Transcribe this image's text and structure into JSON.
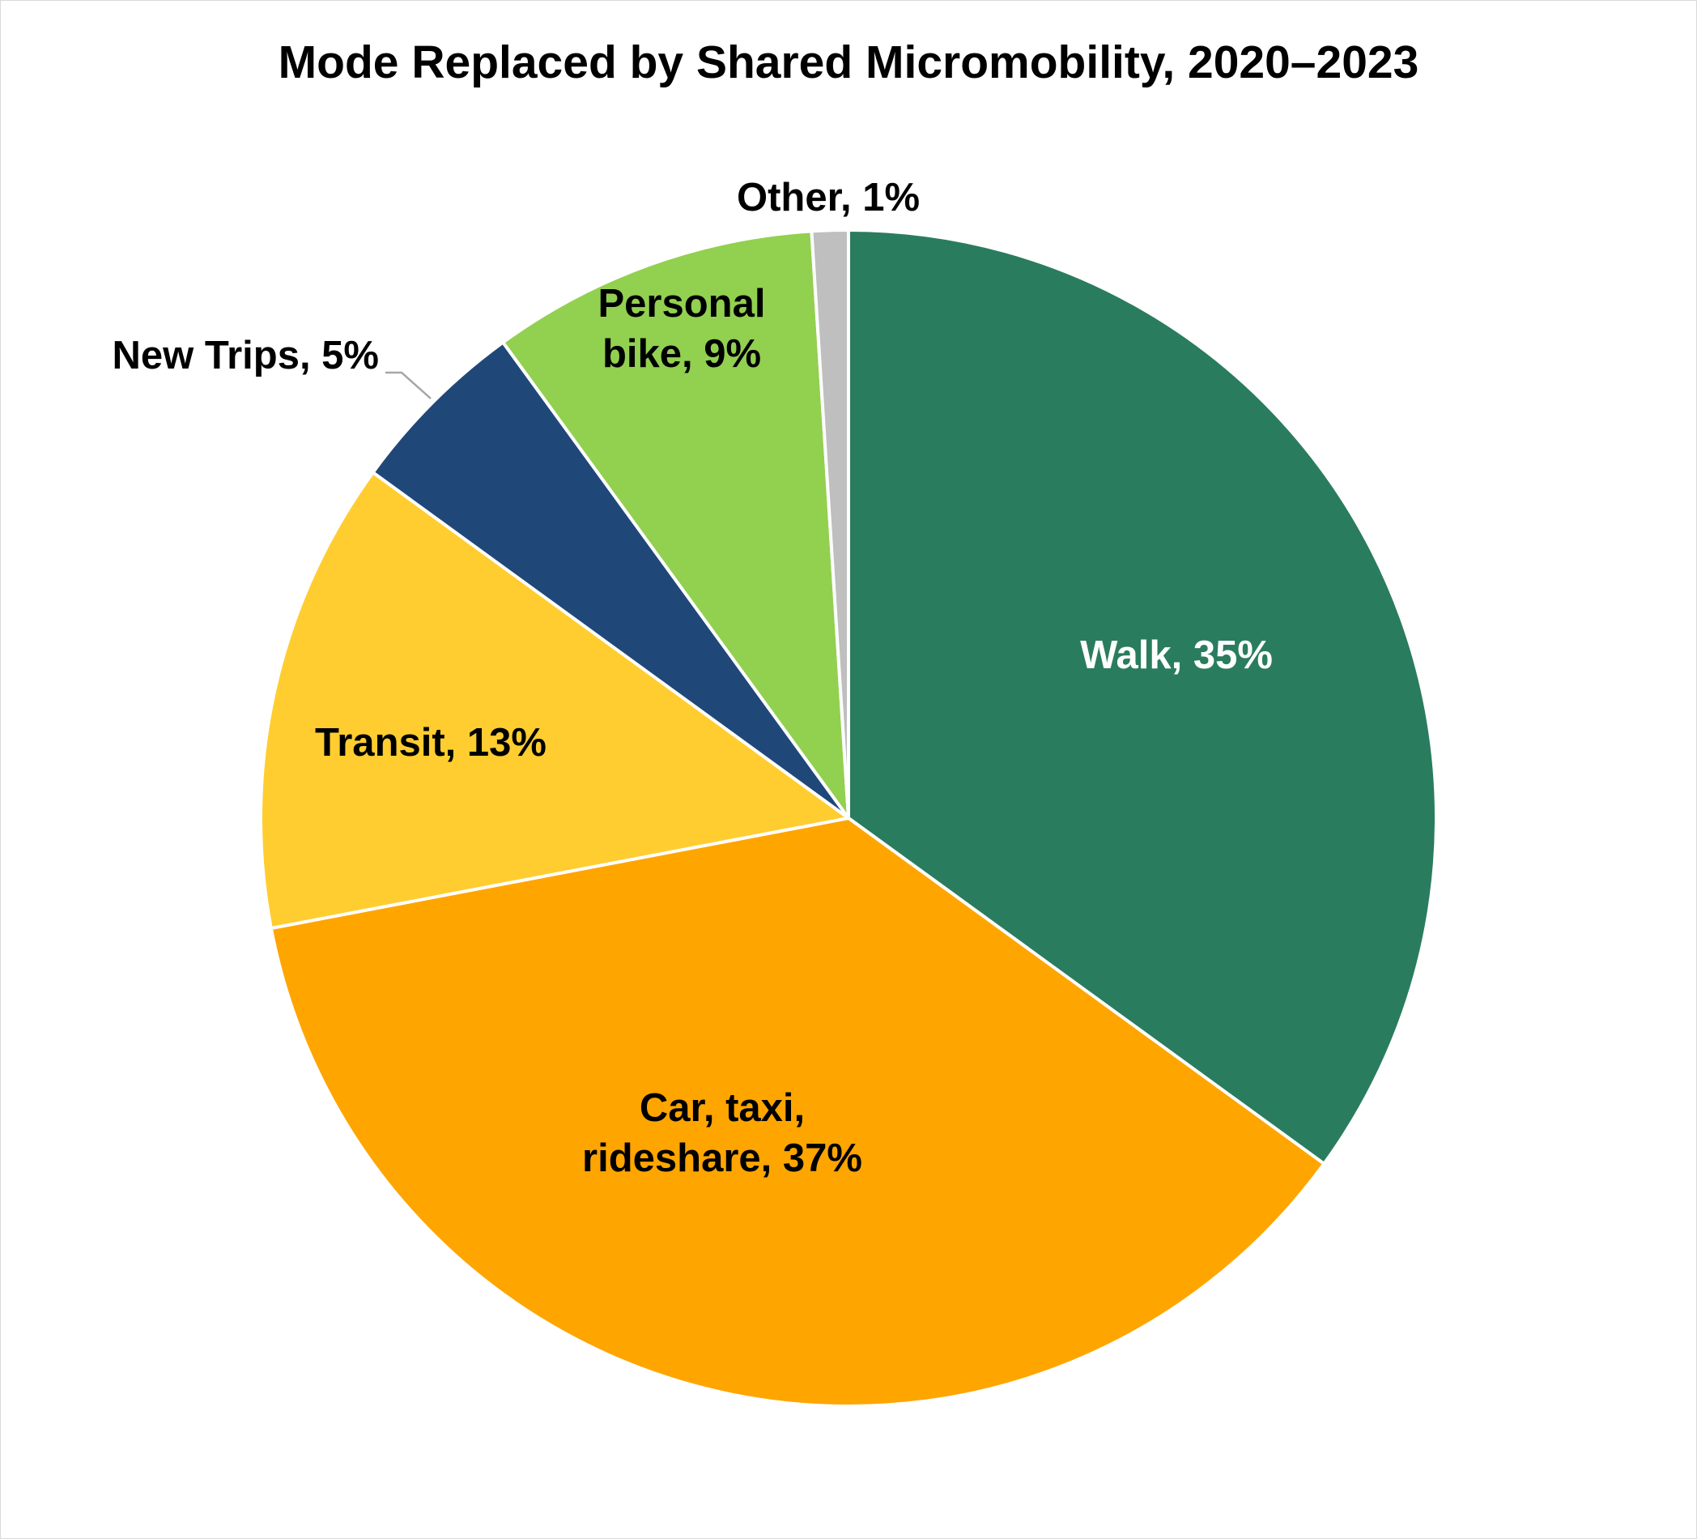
{
  "chart_data": {
    "type": "pie",
    "title": "Mode Replaced by Shared Micromobility, 2020–2023",
    "start_angle": "12 o'clock",
    "direction": "clockwise",
    "slices": [
      {
        "label": "Walk",
        "value": 35,
        "display": [
          "Walk, 35%"
        ],
        "color": "#2a7c5f",
        "label_color": "#ffffff"
      },
      {
        "label": "Car, taxi, rideshare",
        "value": 37,
        "display": [
          "Car, taxi,",
          "rideshare, 37%"
        ],
        "color": "#ffa500",
        "label_color": "#000000"
      },
      {
        "label": "Transit",
        "value": 13,
        "display": [
          "Transit, 13%"
        ],
        "color": "#ffcd2f",
        "label_color": "#000000"
      },
      {
        "label": "New Trips",
        "value": 5,
        "display": [
          "New Trips, 5%"
        ],
        "color": "#1f4879",
        "label_color": "#000000"
      },
      {
        "label": "Personal bike",
        "value": 9,
        "display": [
          "Personal",
          "bike, 9%"
        ],
        "color": "#92d050",
        "label_color": "#000000"
      },
      {
        "label": "Other",
        "value": 1,
        "display": [
          "Other, 1%"
        ],
        "color": "#bfbfbf",
        "label_color": "#000000"
      }
    ]
  }
}
